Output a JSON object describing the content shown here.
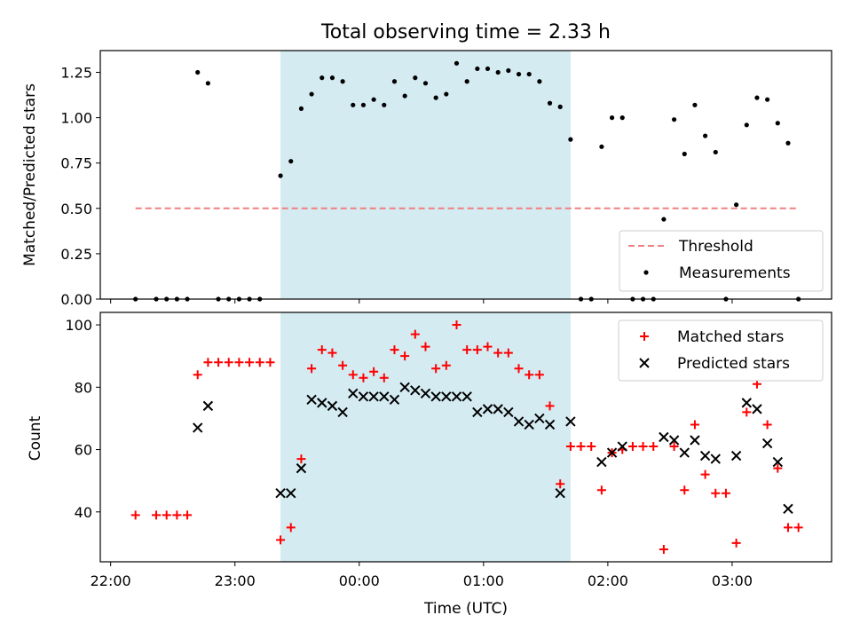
{
  "figure": {
    "title": "Total observing time = 2.33 h",
    "xlabel": "Time (UTC)",
    "x_ticks": [
      "22:00",
      "23:00",
      "00:00",
      "01:00",
      "02:00",
      "03:00"
    ],
    "colors": {
      "threshold": "#f08080",
      "measurements": "#000000",
      "matched": "#ff0000",
      "predicted": "#000000",
      "span": "#add8e6"
    }
  },
  "chart_data": [
    {
      "type": "scatter",
      "ylabel": "Matched/Predicted stars",
      "xlim": [
        "21:55",
        "03:48"
      ],
      "ylim": [
        0,
        1.37
      ],
      "y_ticks": [
        "0.00",
        "0.25",
        "0.50",
        "0.75",
        "1.00",
        "1.25"
      ],
      "observing_span": [
        "23:22",
        "01:42"
      ],
      "legend_position": "lower right",
      "threshold": {
        "name": "Threshold",
        "value": 0.5,
        "x_range": [
          "22:12",
          "03:32"
        ]
      },
      "series": [
        {
          "name": "Measurements",
          "points": [
            [
              "22:12",
              0.0
            ],
            [
              "22:22",
              0.0
            ],
            [
              "22:27",
              0.0
            ],
            [
              "22:32",
              0.0
            ],
            [
              "22:37",
              0.0
            ],
            [
              "22:42",
              1.25
            ],
            [
              "22:47",
              1.19
            ],
            [
              "22:52",
              0.0
            ],
            [
              "22:57",
              0.0
            ],
            [
              "23:02",
              0.0
            ],
            [
              "23:07",
              0.0
            ],
            [
              "23:12",
              0.0
            ],
            [
              "23:22",
              0.68
            ],
            [
              "23:27",
              0.76
            ],
            [
              "23:32",
              1.05
            ],
            [
              "23:37",
              1.13
            ],
            [
              "23:42",
              1.22
            ],
            [
              "23:47",
              1.22
            ],
            [
              "23:52",
              1.2
            ],
            [
              "23:57",
              1.07
            ],
            [
              "00:02",
              1.07
            ],
            [
              "00:07",
              1.1
            ],
            [
              "00:12",
              1.07
            ],
            [
              "00:17",
              1.2
            ],
            [
              "00:22",
              1.12
            ],
            [
              "00:27",
              1.22
            ],
            [
              "00:32",
              1.19
            ],
            [
              "00:37",
              1.11
            ],
            [
              "00:42",
              1.13
            ],
            [
              "00:47",
              1.3
            ],
            [
              "00:52",
              1.2
            ],
            [
              "00:57",
              1.27
            ],
            [
              "01:02",
              1.27
            ],
            [
              "01:07",
              1.25
            ],
            [
              "01:12",
              1.26
            ],
            [
              "01:17",
              1.24
            ],
            [
              "01:22",
              1.24
            ],
            [
              "01:27",
              1.2
            ],
            [
              "01:32",
              1.08
            ],
            [
              "01:37",
              1.06
            ],
            [
              "01:42",
              0.88
            ],
            [
              "01:47",
              0.0
            ],
            [
              "01:52",
              0.0
            ],
            [
              "01:57",
              0.84
            ],
            [
              "02:02",
              1.0
            ],
            [
              "02:07",
              1.0
            ],
            [
              "02:12",
              0.0
            ],
            [
              "02:17",
              0.0
            ],
            [
              "02:22",
              0.0
            ],
            [
              "02:27",
              0.44
            ],
            [
              "02:32",
              0.99
            ],
            [
              "02:37",
              0.8
            ],
            [
              "02:42",
              1.07
            ],
            [
              "02:47",
              0.9
            ],
            [
              "02:52",
              0.81
            ],
            [
              "02:57",
              0.0
            ],
            [
              "03:02",
              0.52
            ],
            [
              "03:07",
              0.96
            ],
            [
              "03:12",
              1.11
            ],
            [
              "03:17",
              1.1
            ],
            [
              "03:22",
              0.97
            ],
            [
              "03:27",
              0.86
            ],
            [
              "03:32",
              0.0
            ]
          ]
        }
      ]
    },
    {
      "type": "scatter",
      "ylabel": "Count",
      "xlim": [
        "21:55",
        "03:48"
      ],
      "ylim": [
        24,
        104
      ],
      "y_ticks": [
        "40",
        "60",
        "80",
        "100"
      ],
      "observing_span": [
        "23:22",
        "01:42"
      ],
      "legend_position": "upper right",
      "series": [
        {
          "name": "Matched stars",
          "marker": "+",
          "points": [
            [
              "22:12",
              39
            ],
            [
              "22:22",
              39
            ],
            [
              "22:27",
              39
            ],
            [
              "22:32",
              39
            ],
            [
              "22:37",
              39
            ],
            [
              "22:42",
              84
            ],
            [
              "22:47",
              88
            ],
            [
              "22:52",
              88
            ],
            [
              "22:57",
              88
            ],
            [
              "23:02",
              88
            ],
            [
              "23:07",
              88
            ],
            [
              "23:12",
              88
            ],
            [
              "23:17",
              88
            ],
            [
              "23:22",
              31
            ],
            [
              "23:27",
              35
            ],
            [
              "23:32",
              57
            ],
            [
              "23:37",
              86
            ],
            [
              "23:42",
              92
            ],
            [
              "23:47",
              91
            ],
            [
              "23:52",
              87
            ],
            [
              "23:57",
              84
            ],
            [
              "00:02",
              83
            ],
            [
              "00:07",
              85
            ],
            [
              "00:12",
              83
            ],
            [
              "00:17",
              92
            ],
            [
              "00:22",
              90
            ],
            [
              "00:27",
              97
            ],
            [
              "00:32",
              93
            ],
            [
              "00:37",
              86
            ],
            [
              "00:42",
              87
            ],
            [
              "00:47",
              100
            ],
            [
              "00:52",
              92
            ],
            [
              "00:57",
              92
            ],
            [
              "01:02",
              93
            ],
            [
              "01:07",
              91
            ],
            [
              "01:12",
              91
            ],
            [
              "01:17",
              86
            ],
            [
              "01:22",
              84
            ],
            [
              "01:27",
              84
            ],
            [
              "01:32",
              74
            ],
            [
              "01:37",
              49
            ],
            [
              "01:42",
              61
            ],
            [
              "01:47",
              61
            ],
            [
              "01:52",
              61
            ],
            [
              "01:57",
              47
            ],
            [
              "02:02",
              59
            ],
            [
              "02:07",
              60
            ],
            [
              "02:12",
              61
            ],
            [
              "02:17",
              61
            ],
            [
              "02:22",
              61
            ],
            [
              "02:27",
              28
            ],
            [
              "02:32",
              61
            ],
            [
              "02:37",
              47
            ],
            [
              "02:42",
              68
            ],
            [
              "02:47",
              52
            ],
            [
              "02:52",
              46
            ],
            [
              "02:57",
              46
            ],
            [
              "03:02",
              30
            ],
            [
              "03:07",
              72
            ],
            [
              "03:12",
              81
            ],
            [
              "03:17",
              68
            ],
            [
              "03:22",
              54
            ],
            [
              "03:27",
              35
            ],
            [
              "03:32",
              35
            ]
          ]
        },
        {
          "name": "Predicted stars",
          "marker": "x",
          "points": [
            [
              "22:42",
              67
            ],
            [
              "22:47",
              74
            ],
            [
              "23:22",
              46
            ],
            [
              "23:27",
              46
            ],
            [
              "23:32",
              54
            ],
            [
              "23:37",
              76
            ],
            [
              "23:42",
              75
            ],
            [
              "23:47",
              74
            ],
            [
              "23:52",
              72
            ],
            [
              "23:57",
              78
            ],
            [
              "00:02",
              77
            ],
            [
              "00:07",
              77
            ],
            [
              "00:12",
              77
            ],
            [
              "00:17",
              76
            ],
            [
              "00:22",
              80
            ],
            [
              "00:27",
              79
            ],
            [
              "00:32",
              78
            ],
            [
              "00:37",
              77
            ],
            [
              "00:42",
              77
            ],
            [
              "00:47",
              77
            ],
            [
              "00:52",
              77
            ],
            [
              "00:57",
              72
            ],
            [
              "01:02",
              73
            ],
            [
              "01:07",
              73
            ],
            [
              "01:12",
              72
            ],
            [
              "01:17",
              69
            ],
            [
              "01:22",
              68
            ],
            [
              "01:27",
              70
            ],
            [
              "01:32",
              68
            ],
            [
              "01:37",
              46
            ],
            [
              "01:42",
              69
            ],
            [
              "01:57",
              56
            ],
            [
              "02:02",
              59
            ],
            [
              "02:07",
              61
            ],
            [
              "02:27",
              64
            ],
            [
              "02:32",
              63
            ],
            [
              "02:37",
              59
            ],
            [
              "02:42",
              63
            ],
            [
              "02:47",
              58
            ],
            [
              "02:52",
              57
            ],
            [
              "03:02",
              58
            ],
            [
              "03:07",
              75
            ],
            [
              "03:12",
              73
            ],
            [
              "03:17",
              62
            ],
            [
              "03:22",
              56
            ],
            [
              "03:27",
              41
            ]
          ]
        }
      ]
    }
  ]
}
